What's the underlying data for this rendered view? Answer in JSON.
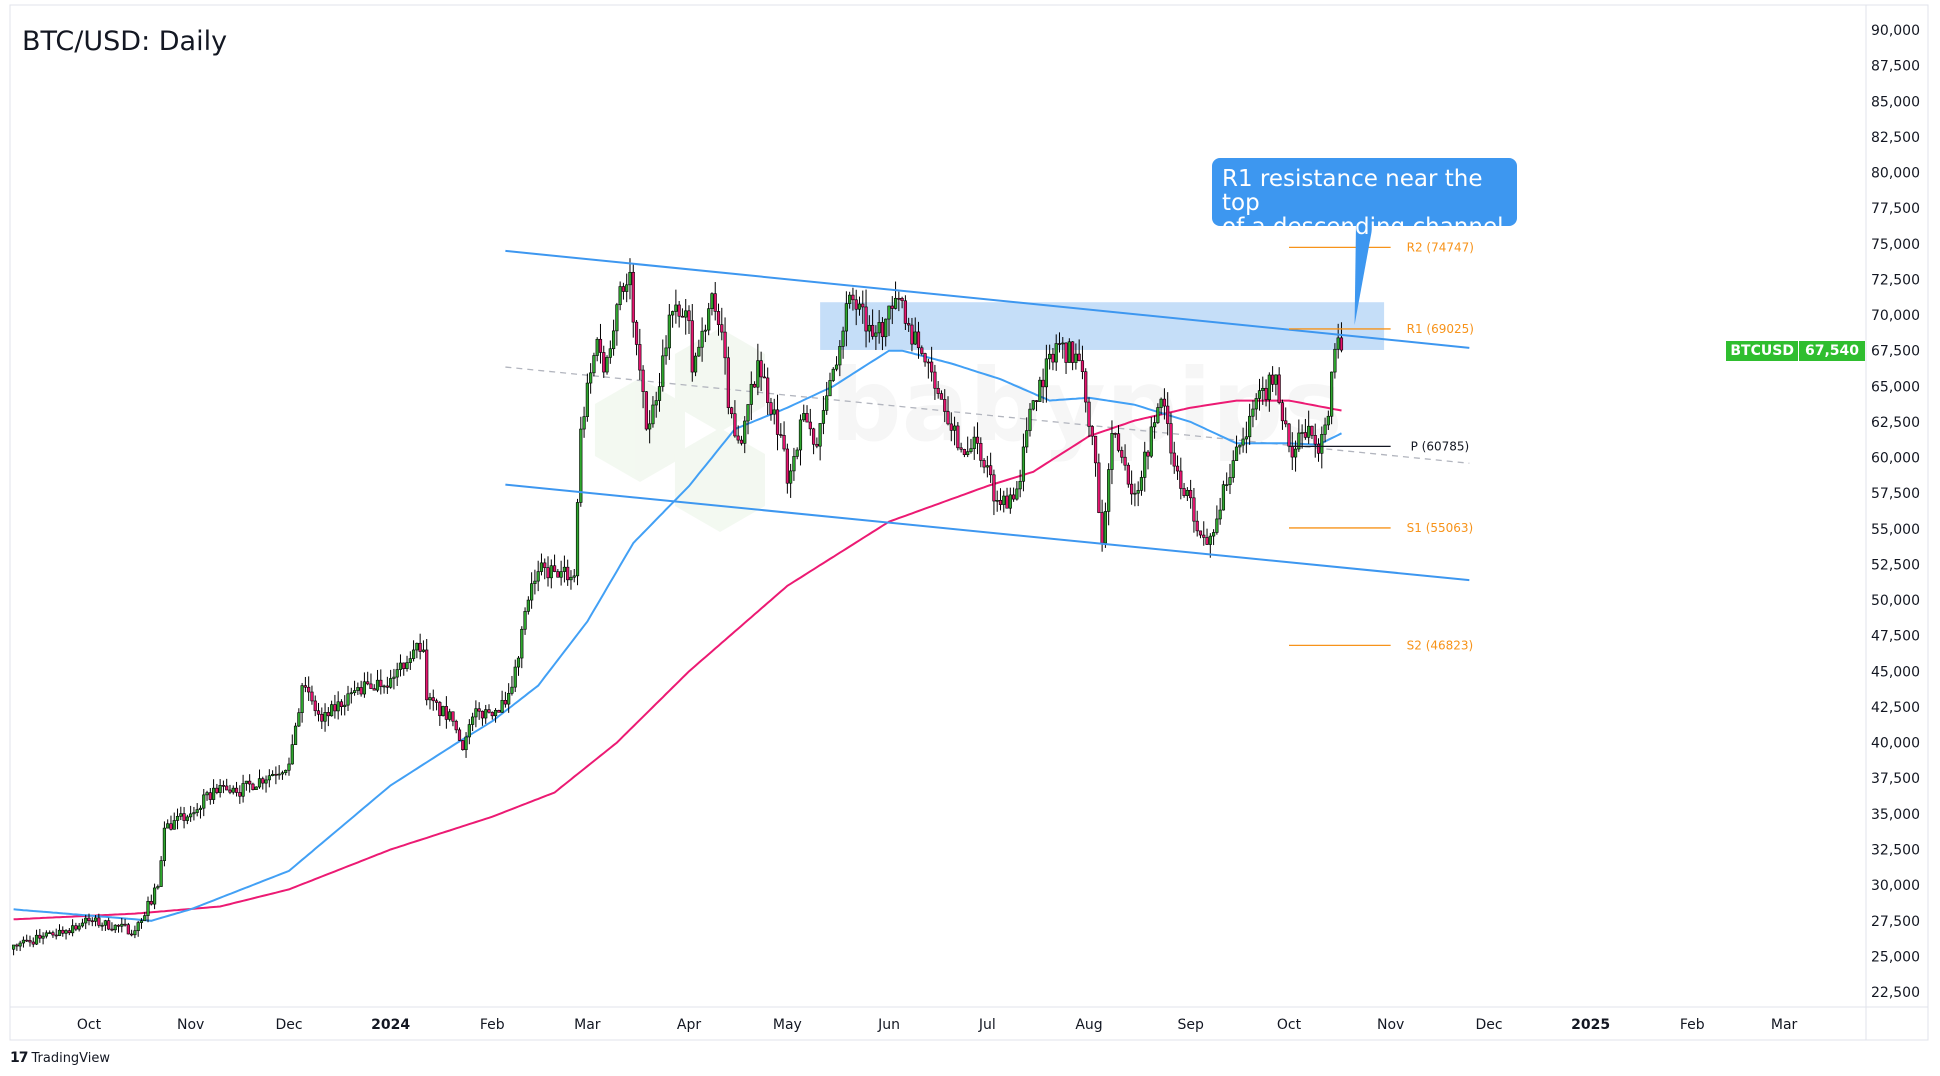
{
  "title": "BTC/USD: Daily",
  "callout": {
    "line1": "R1 resistance near the top",
    "line2": "of a descending channel"
  },
  "footer": {
    "logo": "17",
    "brand": "TradingView"
  },
  "watermark": "babypips",
  "last_price": {
    "symbol": "BTCUSD",
    "value": "67,540"
  },
  "colors": {
    "up": "#2ea62e",
    "down": "#e4156f",
    "ma_fast": "#42a0f5",
    "ma_slow": "#ec1a73",
    "channel": "#3d97f0",
    "pivot_sr": "#f7931a",
    "pivot_p": "#131722",
    "zone": "#c2dcf8",
    "badge": "#2fbe2f"
  },
  "chart_data": {
    "type": "candlestick",
    "title": "BTC/USD: Daily",
    "ylim": [
      21000,
      91500
    ],
    "grid": false,
    "y_ticks": [
      "22,500",
      "25,000",
      "27,500",
      "30,000",
      "32,500",
      "35,000",
      "37,500",
      "40,000",
      "42,500",
      "45,000",
      "47,500",
      "50,000",
      "52,500",
      "55,000",
      "57,500",
      "60,000",
      "62,500",
      "65,000",
      "67,500",
      "70,000",
      "72,500",
      "75,000",
      "77,500",
      "80,000",
      "82,500",
      "85,000",
      "87,500",
      "90,000"
    ],
    "x_ticks": [
      {
        "label": "Oct",
        "date": "2023-10-01"
      },
      {
        "label": "Nov",
        "date": "2023-11-01"
      },
      {
        "label": "Dec",
        "date": "2023-12-01"
      },
      {
        "label": "2024",
        "date": "2024-01-01",
        "year": true
      },
      {
        "label": "Feb",
        "date": "2024-02-01"
      },
      {
        "label": "Mar",
        "date": "2024-03-01"
      },
      {
        "label": "Apr",
        "date": "2024-04-01"
      },
      {
        "label": "May",
        "date": "2024-05-01"
      },
      {
        "label": "Jun",
        "date": "2024-06-01"
      },
      {
        "label": "Jul",
        "date": "2024-07-01"
      },
      {
        "label": "Aug",
        "date": "2024-08-01"
      },
      {
        "label": "Sep",
        "date": "2024-09-01"
      },
      {
        "label": "Oct",
        "date": "2024-10-01"
      },
      {
        "label": "Nov",
        "date": "2024-11-01"
      },
      {
        "label": "Dec",
        "date": "2024-12-01"
      },
      {
        "label": "2025",
        "date": "2025-01-01",
        "year": true
      },
      {
        "label": "Feb",
        "date": "2025-02-01"
      },
      {
        "label": "Mar",
        "date": "2025-03-01"
      }
    ],
    "close_series": [
      [
        "2023-09-08",
        25800
      ],
      [
        "2023-09-20",
        26500
      ],
      [
        "2023-10-01",
        27500
      ],
      [
        "2023-10-15",
        26800
      ],
      [
        "2023-10-22",
        29900
      ],
      [
        "2023-10-24",
        34000
      ],
      [
        "2023-11-01",
        35000
      ],
      [
        "2023-11-10",
        37000
      ],
      [
        "2023-11-15",
        36500
      ],
      [
        "2023-12-01",
        38500
      ],
      [
        "2023-12-05",
        44000
      ],
      [
        "2023-12-11",
        41500
      ],
      [
        "2023-12-20",
        43500
      ],
      [
        "2024-01-01",
        44500
      ],
      [
        "2024-01-08",
        46500
      ],
      [
        "2024-01-11",
        46500
      ],
      [
        "2024-01-12",
        43000
      ],
      [
        "2024-01-20",
        41500
      ],
      [
        "2024-01-23",
        39500
      ],
      [
        "2024-01-26",
        41800
      ],
      [
        "2024-02-05",
        42700
      ],
      [
        "2024-02-08",
        45300
      ],
      [
        "2024-02-12",
        50000
      ],
      [
        "2024-02-15",
        52000
      ],
      [
        "2024-02-20",
        52000
      ],
      [
        "2024-02-26",
        51700
      ],
      [
        "2024-02-28",
        62000
      ],
      [
        "2024-03-04",
        68300
      ],
      [
        "2024-03-06",
        66000
      ],
      [
        "2024-03-11",
        72000
      ],
      [
        "2024-03-14",
        73000
      ],
      [
        "2024-03-15",
        69500
      ],
      [
        "2024-03-19",
        62000
      ],
      [
        "2024-03-22",
        64000
      ],
      [
        "2024-03-26",
        70000
      ],
      [
        "2024-04-01",
        69600
      ],
      [
        "2024-04-02",
        66000
      ],
      [
        "2024-04-08",
        71500
      ],
      [
        "2024-04-12",
        67000
      ],
      [
        "2024-04-13",
        63500
      ],
      [
        "2024-04-17",
        61000
      ],
      [
        "2024-04-22",
        66800
      ],
      [
        "2024-04-30",
        60600
      ],
      [
        "2024-05-01",
        58200
      ],
      [
        "2024-05-06",
        63100
      ],
      [
        "2024-05-10",
        60800
      ],
      [
        "2024-05-15",
        66200
      ],
      [
        "2024-05-20",
        71400
      ],
      [
        "2024-05-27",
        68500
      ],
      [
        "2024-06-05",
        71000
      ],
      [
        "2024-06-07",
        69300
      ],
      [
        "2024-06-11",
        67300
      ],
      [
        "2024-06-14",
        66000
      ],
      [
        "2024-06-24",
        60200
      ],
      [
        "2024-06-28",
        61000
      ],
      [
        "2024-07-04",
        57000
      ],
      [
        "2024-07-05",
        56700
      ],
      [
        "2024-07-10",
        57800
      ],
      [
        "2024-07-15",
        64000
      ],
      [
        "2024-07-22",
        68000
      ],
      [
        "2024-07-29",
        66800
      ],
      [
        "2024-08-02",
        61500
      ],
      [
        "2024-08-05",
        54000
      ],
      [
        "2024-08-08",
        61700
      ],
      [
        "2024-08-15",
        57500
      ],
      [
        "2024-08-23",
        64100
      ],
      [
        "2024-08-27",
        59400
      ],
      [
        "2024-09-06",
        53900
      ],
      [
        "2024-09-12",
        58100
      ],
      [
        "2024-09-19",
        62900
      ],
      [
        "2024-09-27",
        65800
      ],
      [
        "2024-10-01",
        60800
      ],
      [
        "2024-10-03",
        60600
      ],
      [
        "2024-10-07",
        62200
      ],
      [
        "2024-10-10",
        60300
      ],
      [
        "2024-10-13",
        62900
      ],
      [
        "2024-10-14",
        66000
      ],
      [
        "2024-10-15",
        67600
      ],
      [
        "2024-10-16",
        68400
      ],
      [
        "2024-10-17",
        67540
      ]
    ],
    "ma_fast": [
      [
        "2023-09-08",
        28300
      ],
      [
        "2023-10-10",
        27700
      ],
      [
        "2023-10-20",
        27500
      ],
      [
        "2023-11-01",
        28300
      ],
      [
        "2023-12-01",
        31000
      ],
      [
        "2024-01-01",
        37000
      ],
      [
        "2024-01-20",
        39800
      ],
      [
        "2024-02-01",
        41500
      ],
      [
        "2024-02-15",
        44000
      ],
      [
        "2024-03-01",
        48500
      ],
      [
        "2024-03-15",
        54000
      ],
      [
        "2024-04-01",
        58000
      ],
      [
        "2024-04-15",
        62000
      ],
      [
        "2024-05-01",
        63500
      ],
      [
        "2024-05-15",
        65000
      ],
      [
        "2024-06-01",
        67500
      ],
      [
        "2024-06-05",
        67500
      ],
      [
        "2024-06-20",
        66600
      ],
      [
        "2024-07-05",
        65500
      ],
      [
        "2024-07-20",
        64000
      ],
      [
        "2024-08-01",
        64200
      ],
      [
        "2024-08-15",
        63700
      ],
      [
        "2024-09-01",
        62500
      ],
      [
        "2024-09-15",
        61000
      ],
      [
        "2024-10-01",
        61000
      ],
      [
        "2024-10-10",
        60900
      ],
      [
        "2024-10-17",
        61700
      ]
    ],
    "ma_slow": [
      [
        "2023-09-08",
        27600
      ],
      [
        "2023-10-15",
        28000
      ],
      [
        "2023-11-10",
        28500
      ],
      [
        "2023-12-01",
        29700
      ],
      [
        "2024-01-01",
        32500
      ],
      [
        "2024-02-01",
        34800
      ],
      [
        "2024-02-20",
        36500
      ],
      [
        "2024-03-10",
        40000
      ],
      [
        "2024-04-01",
        45000
      ],
      [
        "2024-05-01",
        51000
      ],
      [
        "2024-06-01",
        55500
      ],
      [
        "2024-07-01",
        58000
      ],
      [
        "2024-07-15",
        59000
      ],
      [
        "2024-08-01",
        61500
      ],
      [
        "2024-08-15",
        62600
      ],
      [
        "2024-09-01",
        63500
      ],
      [
        "2024-09-15",
        64000
      ],
      [
        "2024-10-01",
        64000
      ],
      [
        "2024-10-17",
        63300
      ]
    ],
    "channel": {
      "upper": [
        [
          "2024-02-05",
          74500
        ],
        [
          "2024-11-25",
          67700
        ]
      ],
      "middle": [
        [
          "2024-02-05",
          66350
        ],
        [
          "2024-11-25",
          59600
        ]
      ],
      "lower": [
        [
          "2024-02-05",
          58100
        ],
        [
          "2024-11-25",
          51400
        ]
      ]
    },
    "resistance_zone": {
      "from": "2024-05-11",
      "to": "2024-10-30",
      "low": 67550,
      "high": 70900
    },
    "callout_target": [
      "2024-10-21",
      69300
    ],
    "pivots": {
      "from": "2024-10-01",
      "to": "2024-11-01",
      "levels": [
        {
          "name": "R2",
          "value": 74747,
          "label": "R2 (74747)"
        },
        {
          "name": "R1",
          "value": 69025,
          "label": "R1 (69025)"
        },
        {
          "name": "P",
          "value": 60785,
          "label": "P (60785)"
        },
        {
          "name": "S1",
          "value": 55063,
          "label": "S1 (55063)"
        },
        {
          "name": "S2",
          "value": 46823,
          "label": "S2 (46823)"
        }
      ]
    }
  }
}
